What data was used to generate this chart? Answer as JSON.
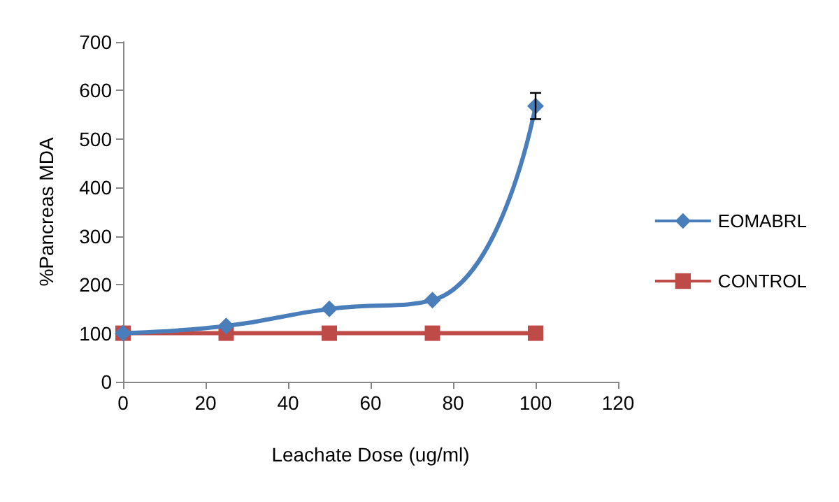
{
  "chart_data": {
    "type": "line",
    "xlabel": "Leachate Dose (ug/ml)",
    "ylabel": "%Pancreas MDA",
    "x": [
      0,
      25,
      50,
      75,
      100
    ],
    "series": [
      {
        "name": "EOMABRL",
        "color": "#4a7ebb",
        "values": [
          100,
          115,
          150,
          168,
          568
        ],
        "errors": [
          null,
          null,
          null,
          null,
          27
        ],
        "marker": "diamond"
      },
      {
        "name": "CONTROL",
        "color": "#be4b48",
        "values": [
          100,
          100,
          100,
          100,
          100
        ],
        "marker": "square"
      }
    ],
    "xlim": [
      0,
      120
    ],
    "xticks": [
      0,
      20,
      40,
      60,
      80,
      100,
      120
    ],
    "ylim": [
      0,
      700
    ],
    "yticks": [
      0,
      100,
      200,
      300,
      400,
      500,
      600,
      700
    ],
    "grid": false,
    "legend": "right"
  }
}
